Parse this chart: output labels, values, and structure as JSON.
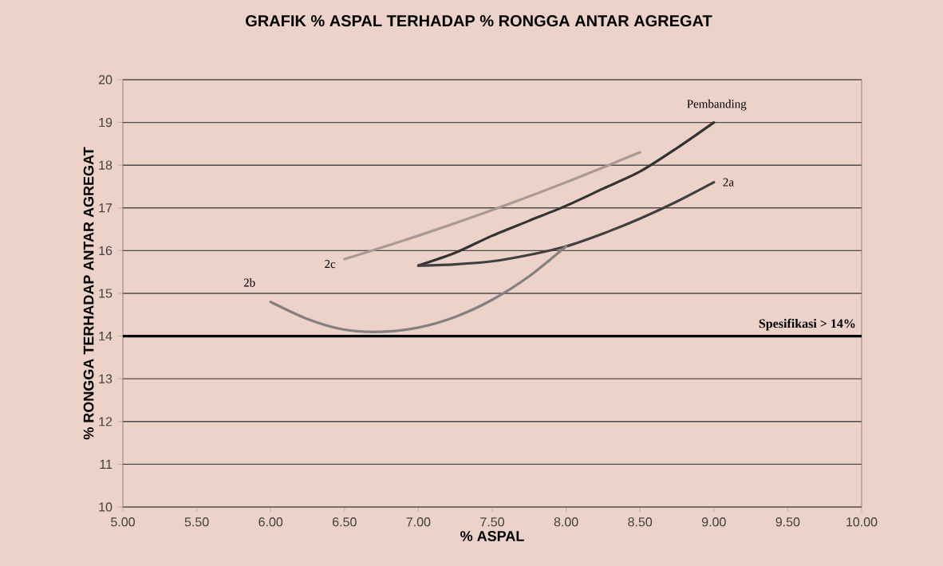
{
  "chart_data": {
    "type": "line",
    "title": "GRAFIK % ASPAL TERHADAP % RONGGA ANTAR AGREGAT",
    "xlabel": "% ASPAL",
    "ylabel": "% RONGGA TERHADAP ANTAR AGREGAT",
    "xlim": [
      5,
      10
    ],
    "xticks": [
      {
        "value": 5,
        "label": "5.00"
      },
      {
        "value": 5.5,
        "label": "5.50"
      },
      {
        "value": 6,
        "label": "6.00"
      },
      {
        "value": 6.5,
        "label": "6.50"
      },
      {
        "value": 7,
        "label": "7.00"
      },
      {
        "value": 7.5,
        "label": "7.50"
      },
      {
        "value": 8,
        "label": "8.00"
      },
      {
        "value": 8.5,
        "label": "8.50"
      },
      {
        "value": 9,
        "label": "9.00"
      },
      {
        "value": 9.5,
        "label": "9.50"
      },
      {
        "value": 10,
        "label": "10.00"
      }
    ],
    "ylim": [
      10,
      20
    ],
    "yticks": [
      10,
      11,
      12,
      13,
      14,
      15,
      16,
      17,
      18,
      19,
      20
    ],
    "grid": "y",
    "marker": "none",
    "line_style": "solid",
    "series": [
      {
        "name": "Pembanding",
        "color": "#333333",
        "x": [
          7.0,
          7.25,
          7.5,
          7.75,
          8.0,
          8.25,
          8.5,
          8.75,
          9.0
        ],
        "values": [
          15.65,
          15.95,
          16.35,
          16.7,
          17.05,
          17.45,
          17.85,
          18.4,
          19.0
        ]
      },
      {
        "name": "2a",
        "color": "#404040",
        "x": [
          7.0,
          7.25,
          7.5,
          7.75,
          8.0,
          8.25,
          8.5,
          8.75,
          9.0
        ],
        "values": [
          15.65,
          15.68,
          15.75,
          15.9,
          16.1,
          16.4,
          16.75,
          17.15,
          17.6
        ]
      },
      {
        "name": "2b",
        "color": "#858080",
        "x": [
          6.0,
          6.25,
          6.5,
          6.75,
          7.0,
          7.25,
          7.5,
          7.75,
          8.0
        ],
        "values": [
          14.8,
          14.4,
          14.15,
          14.1,
          14.2,
          14.45,
          14.85,
          15.4,
          16.1
        ]
      },
      {
        "name": "2c",
        "color": "#a89896",
        "x": [
          6.5,
          7.0,
          7.5,
          8.0,
          8.5
        ],
        "values": [
          15.8,
          16.35,
          16.95,
          17.6,
          18.3
        ]
      }
    ],
    "ref_lines": [
      {
        "axis": "y",
        "value": 14,
        "label": "Spesifikasi > 14%",
        "color": "#000000"
      }
    ]
  }
}
